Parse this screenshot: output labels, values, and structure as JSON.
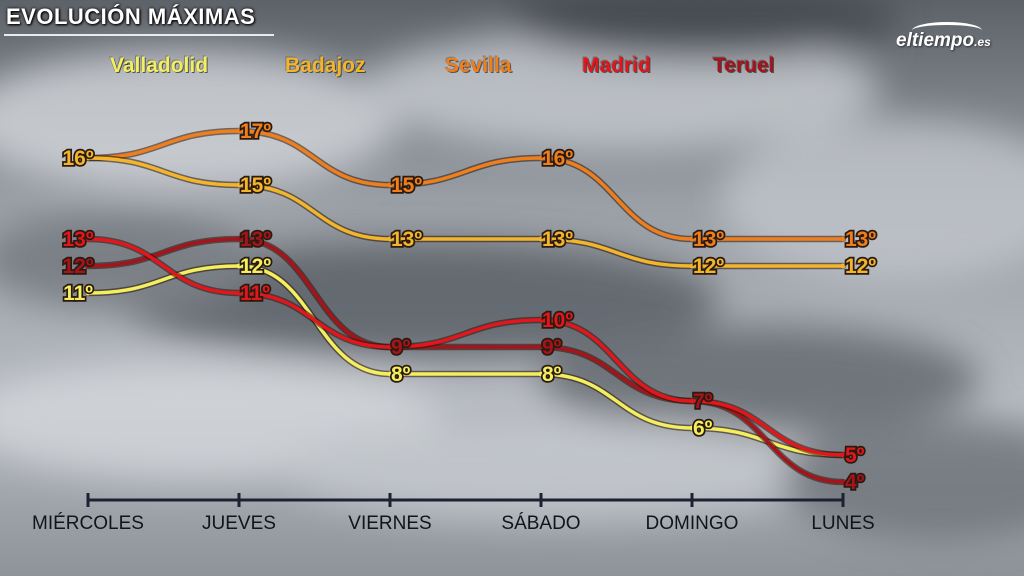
{
  "header": {
    "title": "EVOLUCIÓN MÁXIMAS",
    "logo_main": "eltiempo",
    "logo_domain": ".es"
  },
  "legend": [
    {
      "label": "Valladolid",
      "color": "#f4ef5e"
    },
    {
      "label": "Badajoz",
      "color": "#f3b52a"
    },
    {
      "label": "Sevilla",
      "color": "#ef7f1c"
    },
    {
      "label": "Madrid",
      "color": "#e2161c"
    },
    {
      "label": "Teruel",
      "color": "#a5141a"
    }
  ],
  "chart_data": {
    "type": "line",
    "title": "EVOLUCIÓN MÁXIMAS",
    "categories": [
      "MIÉRCOLES",
      "JUEVES",
      "VIERNES",
      "SÁBADO",
      "DOMINGO",
      "LUNES"
    ],
    "unit_suffix": "º",
    "ylim": [
      3,
      18
    ],
    "grid": false,
    "legend_position": "top",
    "series": [
      {
        "name": "Valladolid",
        "color": "#f4ef5e",
        "values": [
          11,
          12,
          8,
          8,
          6,
          5
        ]
      },
      {
        "name": "Badajoz",
        "color": "#f3b52a",
        "values": [
          16,
          15,
          13,
          13,
          12,
          12
        ]
      },
      {
        "name": "Sevilla",
        "color": "#ef7f1c",
        "values": [
          16,
          17,
          15,
          16,
          13,
          13
        ]
      },
      {
        "name": "Madrid",
        "color": "#e2161c",
        "values": [
          13,
          11,
          9,
          10,
          7,
          5
        ]
      },
      {
        "name": "Teruel",
        "color": "#a5141a",
        "values": [
          12,
          13,
          9,
          9,
          7,
          4
        ]
      }
    ],
    "value_labels": [
      {
        "series": "Valladolid",
        "index": 0,
        "text": "11º"
      },
      {
        "series": "Valladolid",
        "index": 1,
        "text": "12º"
      },
      {
        "series": "Valladolid",
        "index": 2,
        "text": "8º"
      },
      {
        "series": "Valladolid",
        "index": 3,
        "text": "8º"
      },
      {
        "series": "Valladolid",
        "index": 4,
        "text": "6º"
      },
      {
        "series": "Badajoz",
        "index": 0,
        "text": "16º"
      },
      {
        "series": "Badajoz",
        "index": 1,
        "text": "15º"
      },
      {
        "series": "Badajoz",
        "index": 2,
        "text": "13º"
      },
      {
        "series": "Badajoz",
        "index": 3,
        "text": "13º"
      },
      {
        "series": "Badajoz",
        "index": 4,
        "text": "12º"
      },
      {
        "series": "Badajoz",
        "index": 5,
        "text": "12º"
      },
      {
        "series": "Sevilla",
        "index": 1,
        "text": "17º"
      },
      {
        "series": "Sevilla",
        "index": 2,
        "text": "15º"
      },
      {
        "series": "Sevilla",
        "index": 3,
        "text": "16º"
      },
      {
        "series": "Sevilla",
        "index": 4,
        "text": "13º"
      },
      {
        "series": "Sevilla",
        "index": 5,
        "text": "13º"
      },
      {
        "series": "Madrid",
        "index": 0,
        "text": "13º"
      },
      {
        "series": "Madrid",
        "index": 1,
        "text": "11º"
      },
      {
        "series": "Madrid",
        "index": 3,
        "text": "10º"
      },
      {
        "series": "Madrid",
        "index": 5,
        "text": "5º"
      },
      {
        "series": "Teruel",
        "index": 0,
        "text": "12º"
      },
      {
        "series": "Teruel",
        "index": 1,
        "text": "13º"
      },
      {
        "series": "Teruel",
        "index": 2,
        "text": "9º"
      },
      {
        "series": "Teruel",
        "index": 3,
        "text": "9º"
      },
      {
        "series": "Teruel",
        "index": 4,
        "text": "7º"
      },
      {
        "series": "Teruel",
        "index": 5,
        "text": "4º"
      }
    ]
  }
}
